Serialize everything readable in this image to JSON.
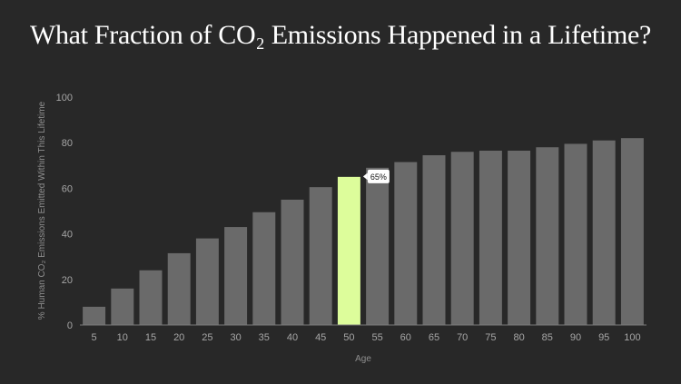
{
  "chart_data": {
    "type": "bar",
    "title": "What Fraction of CO₂ Emissions Happened in a Lifetime?",
    "xlabel": "Age",
    "ylabel": "% Human CO₂ Emissions Emitted Within This Lifetime",
    "categories": [
      "5",
      "10",
      "15",
      "20",
      "25",
      "30",
      "35",
      "40",
      "45",
      "50",
      "55",
      "60",
      "65",
      "70",
      "75",
      "80",
      "85",
      "90",
      "95",
      "100"
    ],
    "values": [
      8,
      16,
      24,
      31.5,
      38,
      43,
      49.5,
      55,
      60.5,
      65,
      69,
      71.5,
      74.5,
      76,
      76.5,
      76.5,
      78,
      79.5,
      81,
      82
    ],
    "ylim": [
      0,
      100
    ],
    "yticks": [
      0,
      20,
      40,
      60,
      80,
      100
    ],
    "bar_color": "#6a6a6a",
    "highlight": {
      "index": 9,
      "color": "#ddfd9b",
      "label": "65%"
    },
    "grid": false
  }
}
